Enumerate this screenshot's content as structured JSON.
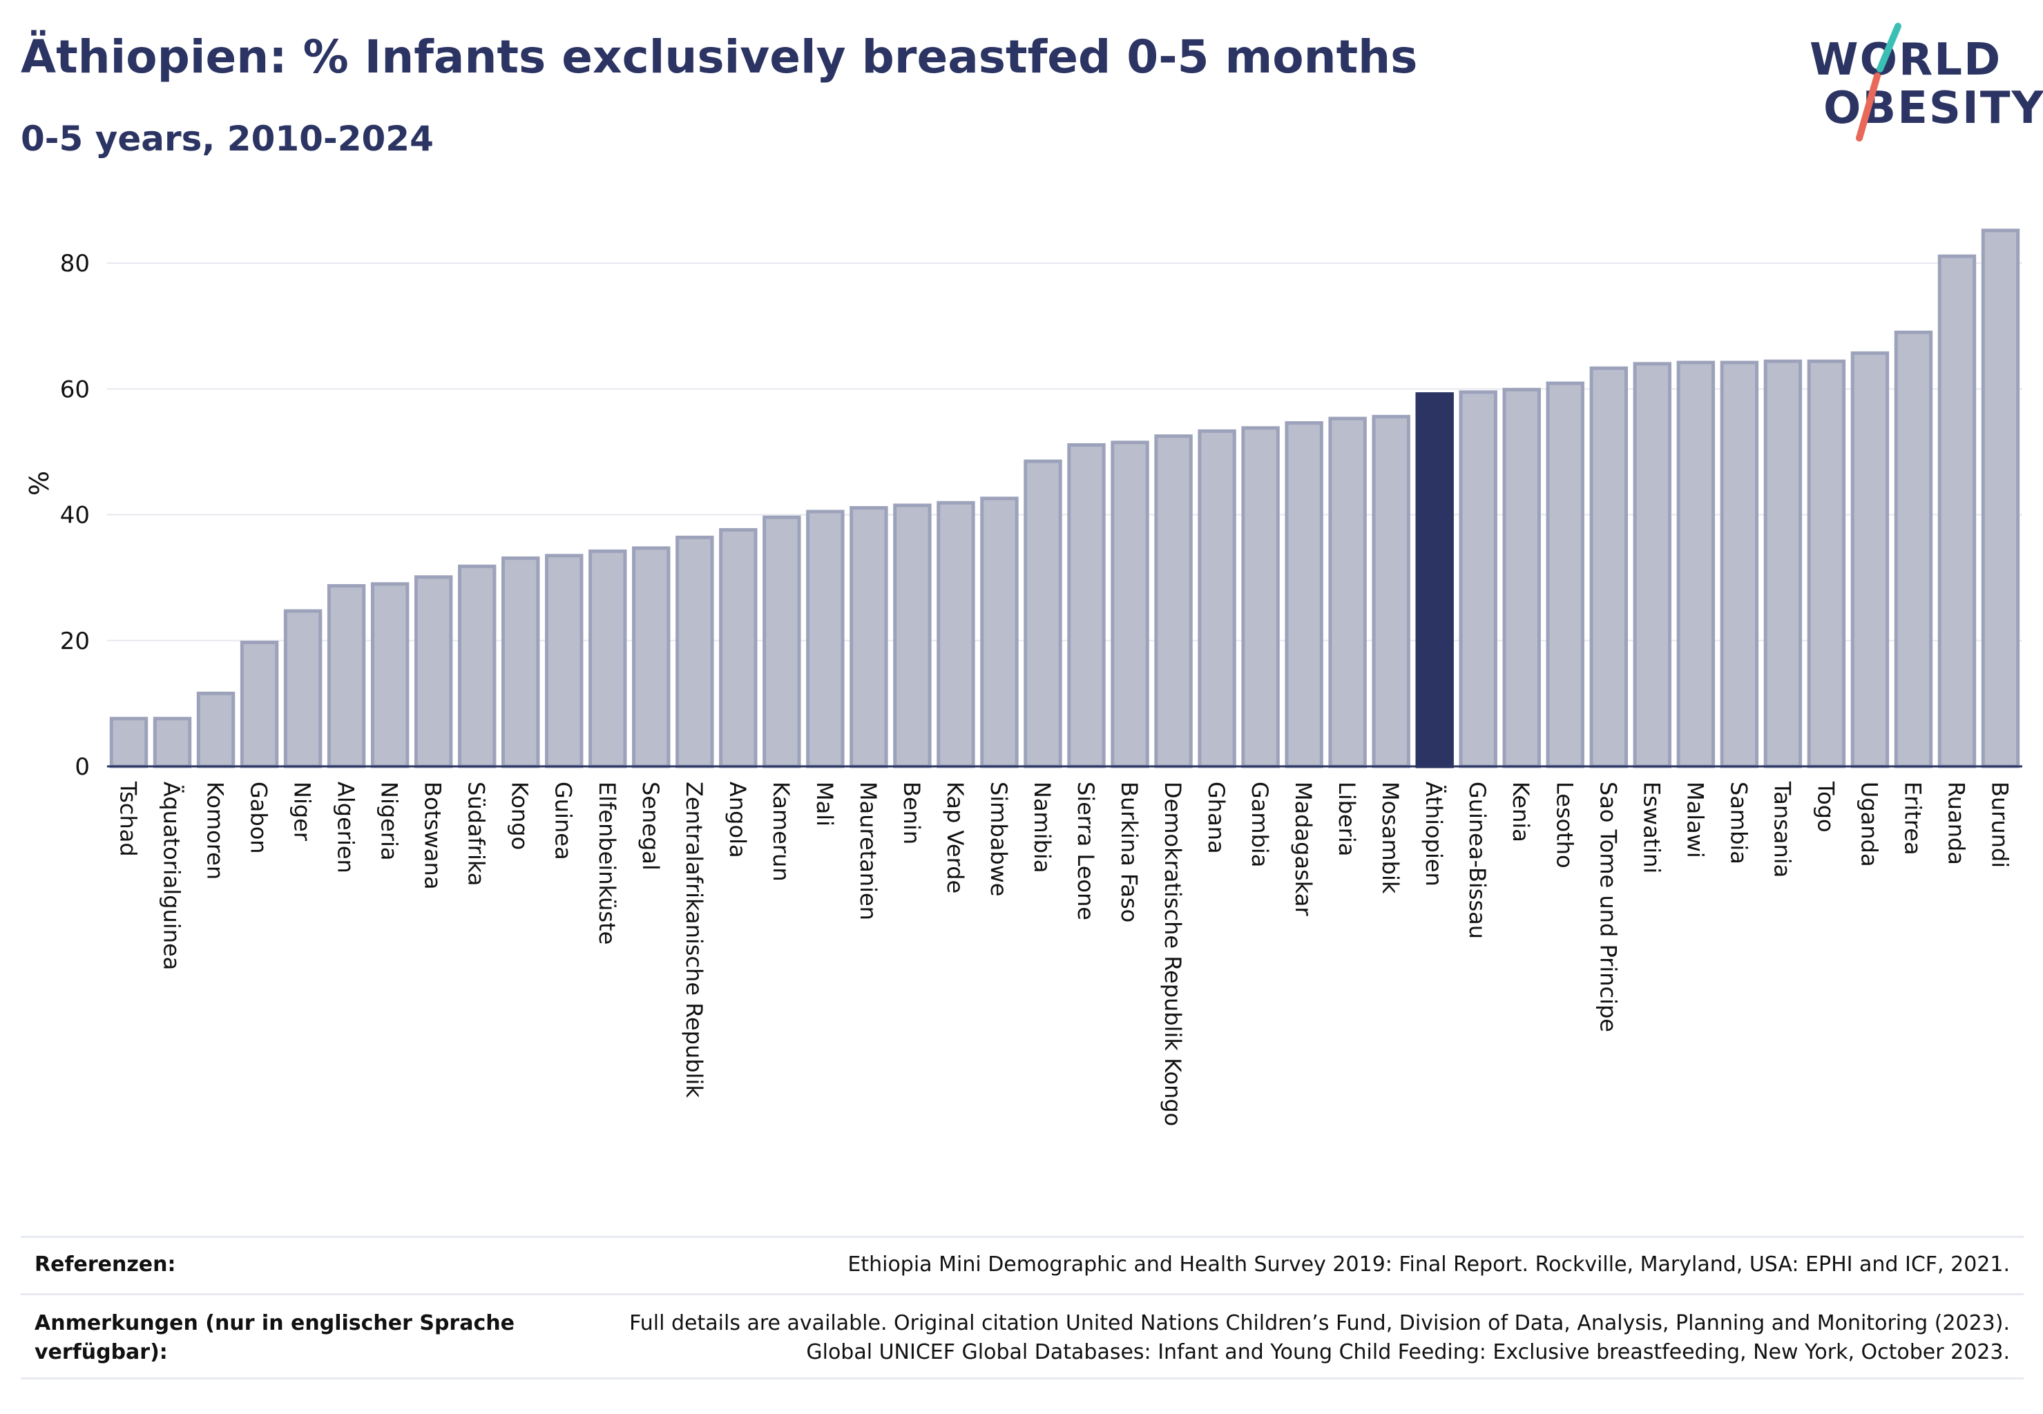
{
  "header": {
    "title": "Äthiopien: % Infants exclusively breastfed 0-5 months",
    "subtitle": "0-5 years, 2010-2024"
  },
  "logo": {
    "line1": "WORLD",
    "line2": "OBESITY",
    "accent_teal": "#3bbfb5",
    "accent_red": "#e8685a"
  },
  "colors": {
    "bar": "#b9bdcc",
    "bar_stroke": "#9da2bb",
    "highlight": "#2b3462",
    "grid": "#e6e8ef",
    "axis": "#2b3462"
  },
  "chart_data": {
    "type": "bar",
    "ylabel": "%",
    "ylim": [
      0,
      90
    ],
    "yticks": [
      0,
      20,
      40,
      60,
      80
    ],
    "grid": true,
    "highlight": "Äthiopien",
    "categories": [
      "Tschad",
      "Äquatorialguinea",
      "Komoren",
      "Gabon",
      "Niger",
      "Algerien",
      "Nigeria",
      "Botswana",
      "Südafrika",
      "Kongo",
      "Guinea",
      "Elfenbeinküste",
      "Senegal",
      "Zentralafrikanische Republik",
      "Angola",
      "Kamerun",
      "Mali",
      "Mauretanien",
      "Benin",
      "Kap Verde",
      "Simbabwe",
      "Namibia",
      "Sierra Leone",
      "Burkina Faso",
      "Demokratische Republik Kongo",
      "Ghana",
      "Gambia",
      "Madagaskar",
      "Liberia",
      "Mosambik",
      "Äthiopien",
      "Guinea-Bissau",
      "Kenia",
      "Lesotho",
      "Sao Tome und Principe",
      "Eswatini",
      "Malawi",
      "Sambia",
      "Tansania",
      "Togo",
      "Uganda",
      "Eritrea",
      "Ruanda",
      "Burundi"
    ],
    "values": [
      7.6,
      7.6,
      11.6,
      19.7,
      24.7,
      28.7,
      29.0,
      30.1,
      31.8,
      33.1,
      33.5,
      34.2,
      34.7,
      36.4,
      37.6,
      39.6,
      40.5,
      41.1,
      41.5,
      41.9,
      42.6,
      48.5,
      51.1,
      51.5,
      52.5,
      53.3,
      53.8,
      54.6,
      55.3,
      55.6,
      59.2,
      59.5,
      59.9,
      60.9,
      63.3,
      64.0,
      64.2,
      64.2,
      64.4,
      64.4,
      65.7,
      69.0,
      81.1,
      85.2
    ]
  },
  "footer": {
    "ref_label": "Referenzen:",
    "ref_text": "Ethiopia Mini Demographic and Health Survey 2019: Final Report. Rockville, Maryland, USA: EPHI and ICF, 2021.",
    "notes_label_1": "Anmerkungen (nur in englischer Sprache",
    "notes_label_2": "verfügbar):",
    "notes_text_1": "Full details are available. Original citation United Nations Children’s Fund, Division of Data, Analysis, Planning and Monitoring (2023).",
    "notes_text_2": "Global UNICEF Global Databases: Infant and Young Child Feeding: Exclusive breastfeeding, New York, October 2023."
  }
}
